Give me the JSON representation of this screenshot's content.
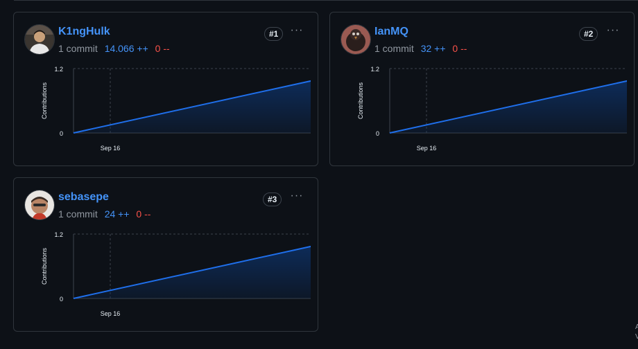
{
  "contributors": [
    {
      "rank": "#1",
      "username": "K1ngHulk",
      "commits": "1 commit",
      "additions": "14.066 ++",
      "deletions": "0 --",
      "avatar": "avatar-photo-person-icon",
      "chart": {
        "y_label": "Contributions",
        "y_ticks": [
          "1.2",
          "0"
        ],
        "x_ticks": [
          "Sep 16"
        ]
      }
    },
    {
      "rank": "#2",
      "username": "IanMQ",
      "commits": "1 commit",
      "additions": "32 ++",
      "deletions": "0 --",
      "avatar": "avatar-bird-icon",
      "chart": {
        "y_label": "Contributions",
        "y_ticks": [
          "1.2",
          "0"
        ],
        "x_ticks": [
          "Sep 16"
        ]
      }
    },
    {
      "rank": "#3",
      "username": "sebasepe",
      "commits": "1 commit",
      "additions": "24 ++",
      "deletions": "0 --",
      "avatar": "avatar-photo-person-icon",
      "chart": {
        "y_label": "Contributions",
        "y_ticks": [
          "1.2",
          "0"
        ],
        "x_ticks": [
          "Sep 16"
        ]
      }
    }
  ],
  "menu_glyph": "···",
  "corner_text": "A\nV",
  "colors": {
    "link": "#4493f8",
    "additions": "#4493f8",
    "deletions": "#f85149",
    "line": "#1f6feb",
    "area_top": "#0d2c5a"
  },
  "chart_data": [
    {
      "type": "area",
      "title": "",
      "xlabel": "",
      "ylabel": "Contributions",
      "ylim": [
        0,
        1.2
      ],
      "x": [
        "start",
        "end"
      ],
      "series": [
        {
          "values": [
            0,
            1
          ]
        }
      ],
      "x_ticks": [
        "Sep 16"
      ],
      "grid": true
    },
    {
      "type": "area",
      "title": "",
      "xlabel": "",
      "ylabel": "Contributions",
      "ylim": [
        0,
        1.2
      ],
      "x": [
        "start",
        "end"
      ],
      "series": [
        {
          "values": [
            0,
            1
          ]
        }
      ],
      "x_ticks": [
        "Sep 16"
      ],
      "grid": true
    },
    {
      "type": "area",
      "title": "",
      "xlabel": "",
      "ylabel": "Contributions",
      "ylim": [
        0,
        1.2
      ],
      "x": [
        "start",
        "end"
      ],
      "series": [
        {
          "values": [
            0,
            1
          ]
        }
      ],
      "x_ticks": [
        "Sep 16"
      ],
      "grid": true
    }
  ]
}
